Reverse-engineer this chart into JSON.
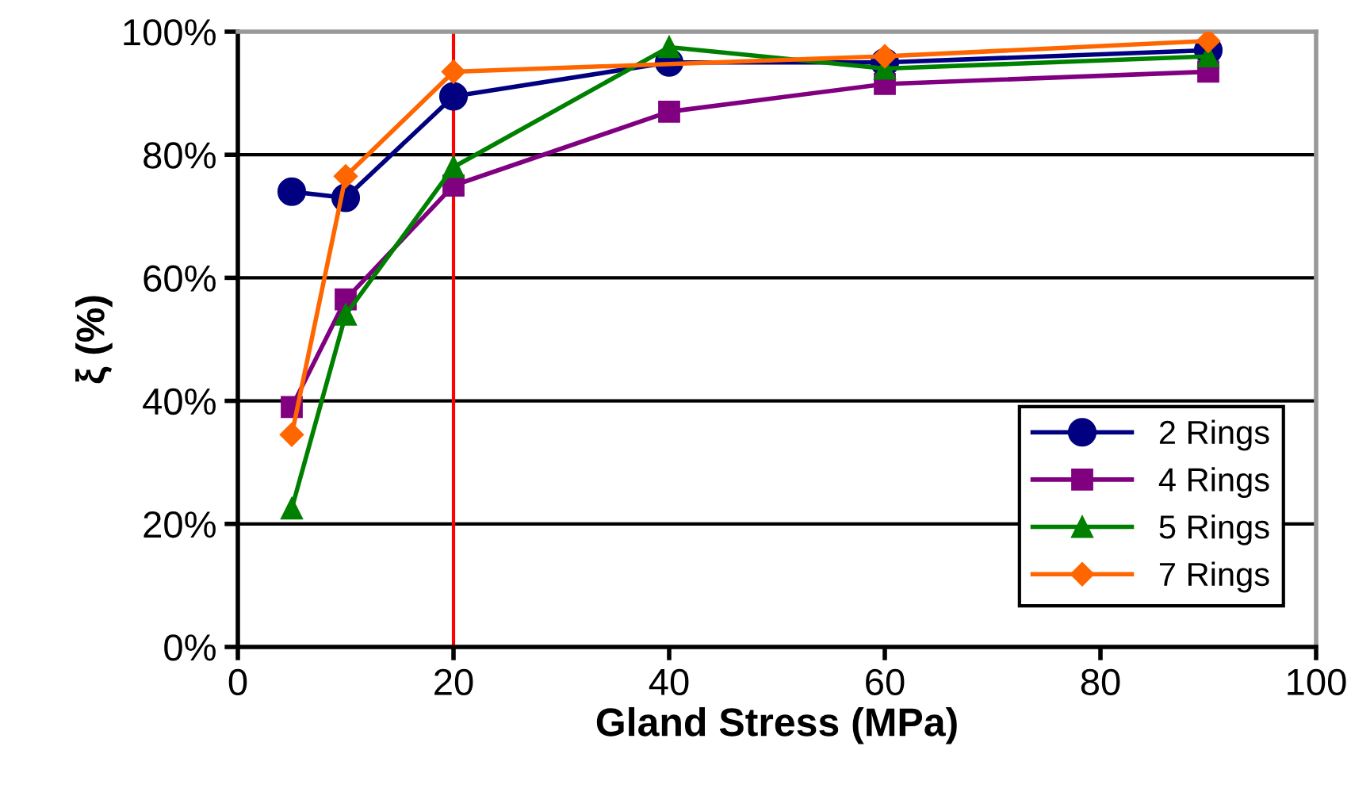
{
  "chart_data": {
    "type": "line",
    "xlabel": "Gland Stress (MPa)",
    "ylabel": "ξ (%)",
    "xlim": [
      0,
      100
    ],
    "xticks": [
      0,
      20,
      40,
      60,
      80,
      100
    ],
    "ylim": [
      0,
      100
    ],
    "yticks": [
      {
        "value": 0,
        "label": "0%"
      },
      {
        "value": 20,
        "label": "20%"
      },
      {
        "value": 40,
        "label": "40%"
      },
      {
        "value": 60,
        "label": "60%"
      },
      {
        "value": 80,
        "label": "80%"
      },
      {
        "value": 100,
        "label": "100%"
      }
    ],
    "grid": "y",
    "legend": "bottom right",
    "ref_lines": [
      {
        "axis": "x",
        "value": 20,
        "color": "#ff0000"
      }
    ],
    "series": [
      {
        "name": "2 Rings",
        "color": "#000080",
        "marker": "circle",
        "x": [
          5,
          10,
          20,
          40,
          60,
          90
        ],
        "values": [
          74,
          73,
          89.5,
          95,
          95,
          97
        ]
      },
      {
        "name": "4 Rings",
        "color": "#800080",
        "marker": "square",
        "x": [
          5,
          10,
          20,
          40,
          60,
          90
        ],
        "values": [
          39,
          56.5,
          75,
          87,
          91.5,
          93.5
        ]
      },
      {
        "name": "5 Rings",
        "color": "#008000",
        "marker": "triangle",
        "x": [
          5,
          10,
          20,
          40,
          60,
          90
        ],
        "values": [
          22.5,
          54,
          78,
          97.5,
          94,
          96
        ]
      },
      {
        "name": "7 Rings",
        "color": "#ff6600",
        "marker": "diamond",
        "x": [
          5,
          10,
          20,
          40,
          60,
          90
        ],
        "values": [
          34.5,
          76.5,
          93.5,
          null,
          96,
          98.5
        ]
      }
    ]
  }
}
